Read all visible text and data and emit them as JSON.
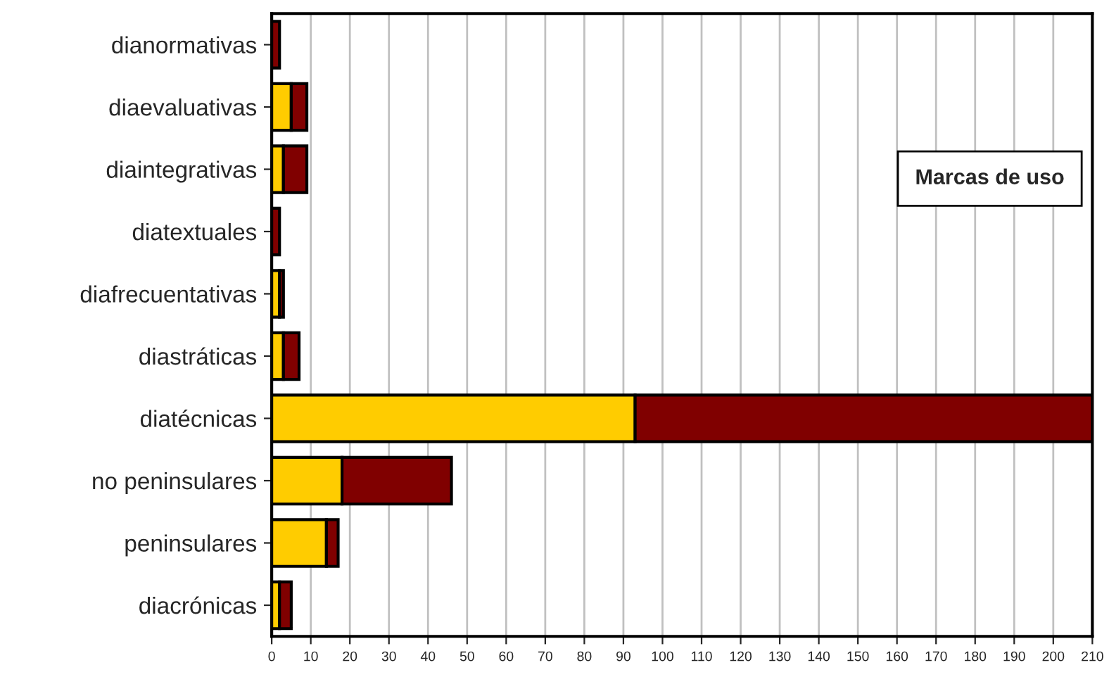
{
  "chart_data": {
    "type": "bar",
    "orientation": "horizontal",
    "stacked": true,
    "categories": [
      "dianormativas",
      "diaevaluativas",
      "diaintegrativas",
      "diatextuales",
      "diafrecuentativas",
      "diastráticas",
      "diatécnicas",
      "no peninsulares",
      "peninsulares",
      "diacrónicas"
    ],
    "series": [
      {
        "color": "#ffcc00",
        "values": [
          0,
          5,
          3,
          0,
          2,
          3,
          93,
          18,
          14,
          2
        ]
      },
      {
        "color": "#800000",
        "values": [
          2,
          4,
          6,
          2,
          1,
          4,
          117,
          28,
          3,
          3
        ]
      }
    ],
    "xlim": [
      0,
      210
    ],
    "xticks": [
      0,
      10,
      20,
      30,
      40,
      50,
      60,
      70,
      80,
      90,
      100,
      110,
      120,
      130,
      140,
      150,
      160,
      170,
      180,
      190,
      200,
      210
    ],
    "grid": "x",
    "legend": false,
    "annotations": [
      "Marcas de uso"
    ]
  }
}
